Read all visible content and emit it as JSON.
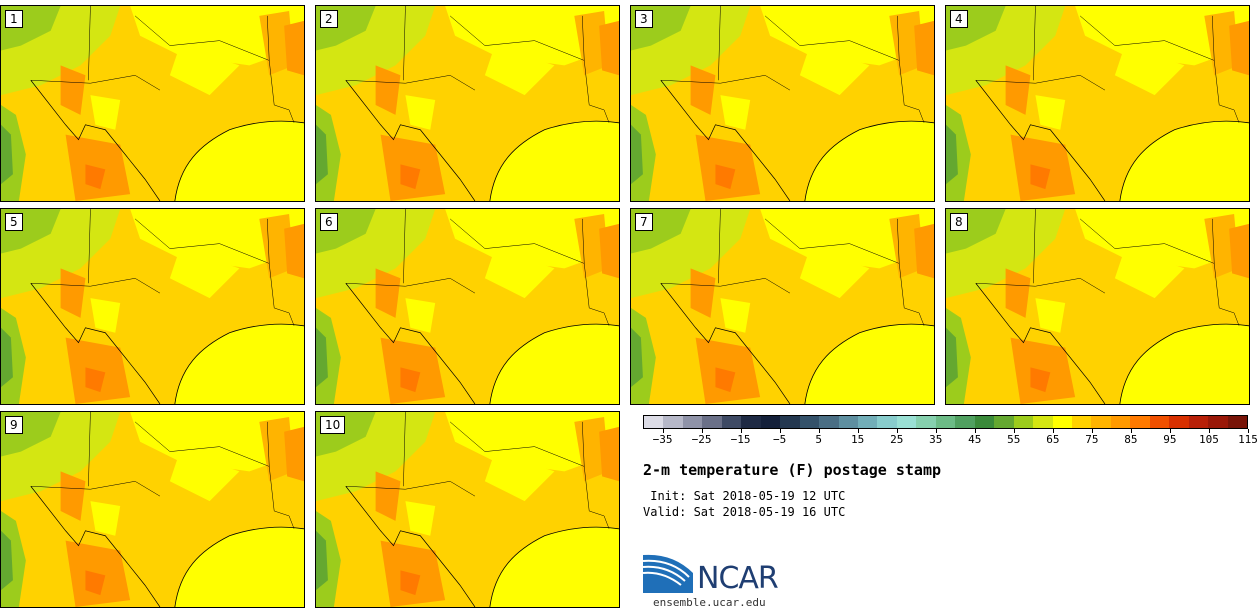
{
  "members": [
    {
      "label": "1"
    },
    {
      "label": "2"
    },
    {
      "label": "3"
    },
    {
      "label": "4"
    },
    {
      "label": "5"
    },
    {
      "label": "6"
    },
    {
      "label": "7"
    },
    {
      "label": "8"
    },
    {
      "label": "9"
    },
    {
      "label": "10"
    }
  ],
  "colorbar": {
    "colors": [
      "#dcdce6",
      "#b6b8c8",
      "#8f93a8",
      "#6a7088",
      "#3e4a64",
      "#1e2a44",
      "#14203a",
      "#243850",
      "#34526a",
      "#4a6e84",
      "#5e8fa0",
      "#72aeb8",
      "#88cccc",
      "#9ae0d4",
      "#86d0ae",
      "#6cbb86",
      "#50a060",
      "#3a8a3a",
      "#64a830",
      "#9ccc1c",
      "#d4e612",
      "#ffff00",
      "#ffd200",
      "#ffb400",
      "#ff9a00",
      "#ff7a00",
      "#f05000",
      "#d83000",
      "#b82008",
      "#9a1808",
      "#781408"
    ],
    "tick_labels": [
      "-35",
      "-25",
      "-15",
      "-5",
      "5",
      "15",
      "25",
      "35",
      "45",
      "55",
      "65",
      "75",
      "85",
      "95",
      "105",
      "115"
    ]
  },
  "title": "2-m temperature (F) postage stamp",
  "init_text": " Init: Sat 2018-05-19 12 UTC",
  "valid_text": "Valid: Sat 2018-05-19 16 UTC",
  "logo_text": "NCAR",
  "logo_url": "ensemble.ucar.edu"
}
